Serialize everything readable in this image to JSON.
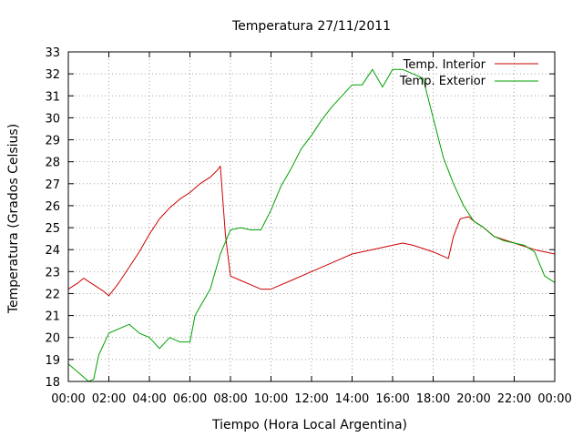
{
  "chart_data": {
    "type": "line",
    "title": "Temperatura 27/11/2011",
    "xlabel": "Tiempo (Hora Local Argentina)",
    "ylabel": "Temperatura (Grados Celsius)",
    "xlim": [
      "00:00",
      "00:00 (+1 day)"
    ],
    "ylim": [
      18,
      33
    ],
    "x_ticks": [
      "00:00",
      "02:00",
      "04:00",
      "06:00",
      "08:00",
      "10:00",
      "12:00",
      "14:00",
      "16:00",
      "18:00",
      "20:00",
      "22:00",
      "00:00"
    ],
    "y_ticks": [
      18,
      19,
      20,
      21,
      22,
      23,
      24,
      25,
      26,
      27,
      28,
      29,
      30,
      31,
      32,
      33
    ],
    "grid": true,
    "legend_position": "top-right",
    "series": [
      {
        "name": "Temp. Interior",
        "color": "#cc0000",
        "x": [
          "00:00",
          "00:30",
          "00:45",
          "01:15",
          "01:45",
          "02:00",
          "02:30",
          "03:00",
          "03:30",
          "04:00",
          "04:30",
          "05:00",
          "05:30",
          "06:00",
          "06:30",
          "07:00",
          "07:20",
          "07:30",
          "07:45",
          "08:00",
          "08:30",
          "09:00",
          "09:30",
          "10:00",
          "10:30",
          "11:00",
          "12:00",
          "13:00",
          "14:00",
          "15:00",
          "16:00",
          "16:30",
          "17:00",
          "18:00",
          "18:45",
          "19:00",
          "19:20",
          "19:45",
          "20:00",
          "20:30",
          "21:00",
          "22:00",
          "23:00",
          "24:00"
        ],
        "values": [
          22.2,
          22.5,
          22.7,
          22.4,
          22.1,
          21.9,
          22.5,
          23.2,
          23.9,
          24.7,
          25.4,
          25.9,
          26.3,
          26.6,
          27.0,
          27.3,
          27.6,
          27.8,
          24.7,
          22.8,
          22.6,
          22.4,
          22.2,
          22.2,
          22.4,
          22.6,
          23.0,
          23.4,
          23.8,
          24.0,
          24.2,
          24.3,
          24.2,
          23.9,
          23.6,
          24.6,
          25.4,
          25.5,
          25.3,
          25.0,
          24.6,
          24.3,
          24.0,
          23.8
        ]
      },
      {
        "name": "Temp. Exterior",
        "color": "#00a000",
        "x": [
          "00:00",
          "00:30",
          "01:00",
          "01:15",
          "01:30",
          "02:00",
          "02:30",
          "03:00",
          "03:30",
          "04:00",
          "04:30",
          "05:00",
          "05:30",
          "06:00",
          "06:15",
          "06:30",
          "07:00",
          "07:30",
          "08:00",
          "08:30",
          "09:00",
          "09:30",
          "10:00",
          "10:30",
          "11:00",
          "11:30",
          "12:00",
          "12:30",
          "13:00",
          "13:30",
          "14:00",
          "14:30",
          "15:00",
          "15:30",
          "16:00",
          "16:30",
          "17:00",
          "17:30",
          "18:00",
          "18:30",
          "19:00",
          "19:30",
          "20:00",
          "20:30",
          "21:00",
          "21:30",
          "22:00",
          "22:30",
          "23:00",
          "23:30",
          "24:00"
        ],
        "values": [
          18.8,
          18.4,
          18.0,
          18.1,
          19.2,
          20.2,
          20.4,
          20.6,
          20.2,
          20.0,
          19.5,
          20.0,
          19.8,
          19.8,
          21.0,
          21.4,
          22.2,
          23.8,
          24.9,
          25.0,
          24.9,
          24.9,
          25.8,
          26.9,
          27.7,
          28.6,
          29.2,
          29.9,
          30.5,
          31.0,
          31.5,
          31.5,
          32.2,
          31.4,
          32.2,
          32.2,
          32.0,
          31.8,
          30.0,
          28.2,
          27.0,
          26.0,
          25.3,
          25.0,
          24.6,
          24.4,
          24.3,
          24.2,
          23.9,
          22.8,
          22.5
        ]
      }
    ]
  }
}
